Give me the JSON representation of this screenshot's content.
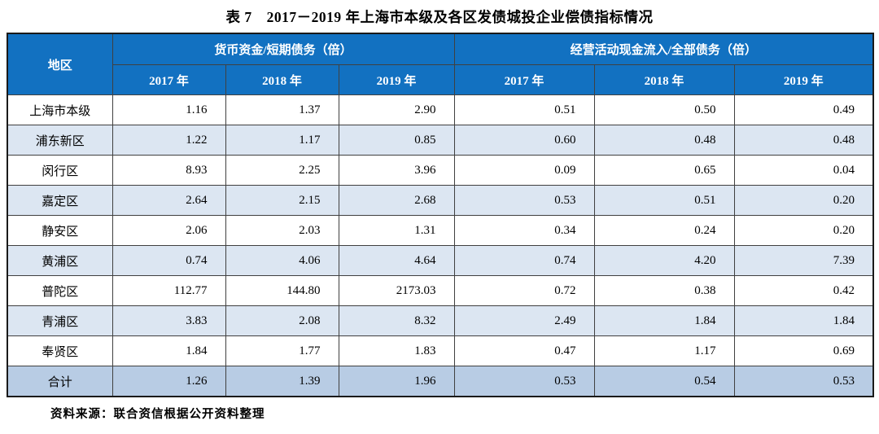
{
  "title": "表 7　2017－2019 年上海市本级及各区发债城投企业偿债指标情况",
  "table": {
    "region_header": "地区",
    "groups": [
      {
        "label": "货币资金/短期债务（倍）",
        "years": [
          "2017 年",
          "2018 年",
          "2019 年"
        ]
      },
      {
        "label": "经营活动现金流入/全部债务（倍）",
        "years": [
          "2017 年",
          "2018 年",
          "2019 年"
        ]
      }
    ],
    "rows": [
      {
        "region": "上海市本级",
        "values": [
          "1.16",
          "1.37",
          "2.90",
          "0.51",
          "0.50",
          "0.49"
        ],
        "is_total": false
      },
      {
        "region": "浦东新区",
        "values": [
          "1.22",
          "1.17",
          "0.85",
          "0.60",
          "0.48",
          "0.48"
        ],
        "is_total": false
      },
      {
        "region": "闵行区",
        "values": [
          "8.93",
          "2.25",
          "3.96",
          "0.09",
          "0.65",
          "0.04"
        ],
        "is_total": false
      },
      {
        "region": "嘉定区",
        "values": [
          "2.64",
          "2.15",
          "2.68",
          "0.53",
          "0.51",
          "0.20"
        ],
        "is_total": false
      },
      {
        "region": "静安区",
        "values": [
          "2.06",
          "2.03",
          "1.31",
          "0.34",
          "0.24",
          "0.20"
        ],
        "is_total": false
      },
      {
        "region": "黄浦区",
        "values": [
          "0.74",
          "4.06",
          "4.64",
          "0.74",
          "4.20",
          "7.39"
        ],
        "is_total": false
      },
      {
        "region": "普陀区",
        "values": [
          "112.77",
          "144.80",
          "2173.03",
          "0.72",
          "0.38",
          "0.42"
        ],
        "is_total": false
      },
      {
        "region": "青浦区",
        "values": [
          "3.83",
          "2.08",
          "8.32",
          "2.49",
          "1.84",
          "1.84"
        ],
        "is_total": false
      },
      {
        "region": "奉贤区",
        "values": [
          "1.84",
          "1.77",
          "1.83",
          "0.47",
          "1.17",
          "0.69"
        ],
        "is_total": false
      },
      {
        "region": "合计",
        "values": [
          "1.26",
          "1.39",
          "1.96",
          "0.53",
          "0.54",
          "0.53"
        ],
        "is_total": true
      }
    ]
  },
  "footer": "资料来源：联合资信根据公开资料整理",
  "colors": {
    "header_bg": "#1271C1",
    "stripe_bg": "#DCE6F2",
    "total_bg": "#B8CCE4",
    "border": "#404040"
  }
}
